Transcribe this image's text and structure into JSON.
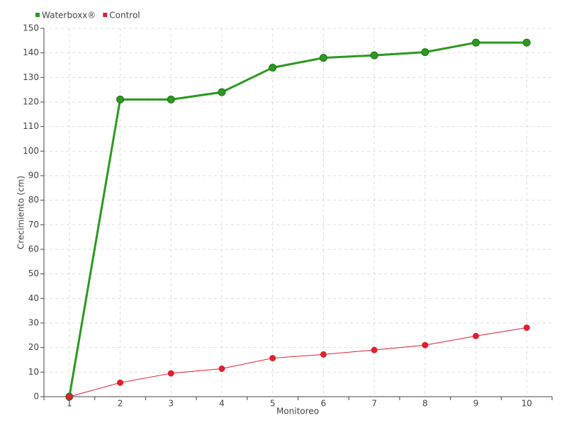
{
  "chart_data": {
    "type": "line",
    "x_label": "Monitoreo",
    "y_label": "Crecimiento (cm)",
    "categories": [
      "1",
      "2",
      "3",
      "4",
      "5",
      "6",
      "7",
      "8",
      "9",
      "10"
    ],
    "series": [
      {
        "name": "Waterboxx®",
        "color": "#2a9a1e",
        "values": [
          0,
          121,
          121,
          124,
          134,
          138,
          139,
          140.3,
          144.2,
          144.2
        ]
      },
      {
        "name": "Control",
        "color": "#e0202e",
        "values": [
          0,
          5.7,
          9.5,
          11.4,
          15.7,
          17.2,
          19,
          21,
          24.7,
          28.1
        ]
      }
    ],
    "ylim": [
      0,
      150
    ],
    "yticks": [
      0,
      10,
      20,
      30,
      40,
      50,
      60,
      70,
      80,
      90,
      100,
      110,
      120,
      130,
      140,
      150
    ],
    "grid": true,
    "legend": "top-left"
  }
}
